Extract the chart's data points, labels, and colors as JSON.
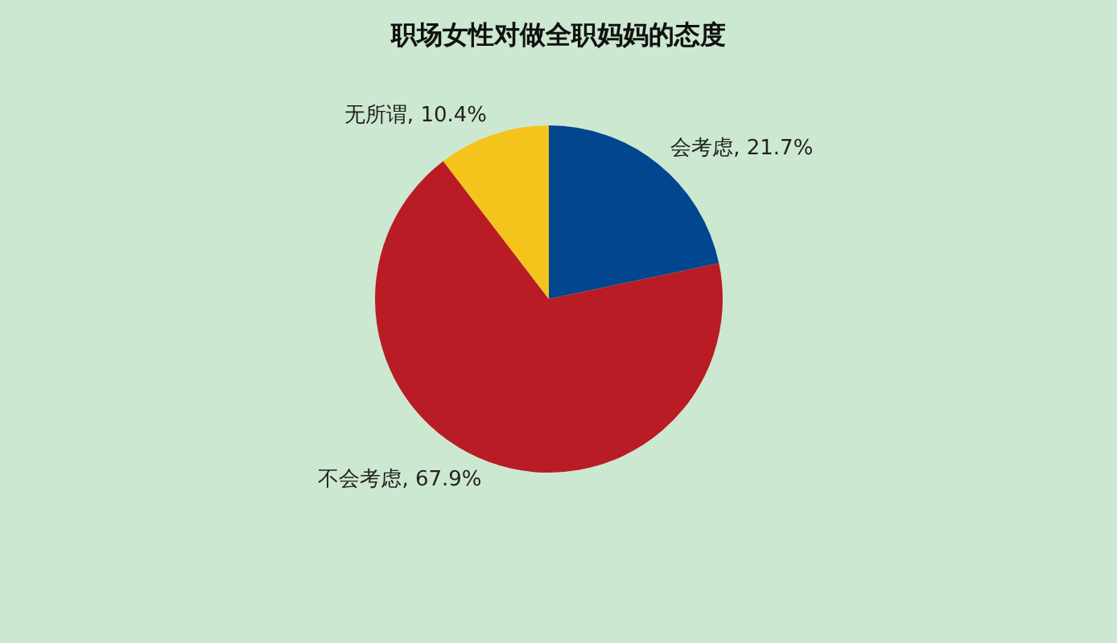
{
  "chart_data": {
    "type": "pie",
    "title": "职场女性对做全职妈妈的态度",
    "categories": [
      "会考虑",
      "不会考虑",
      "无所谓"
    ],
    "values": [
      21.7,
      67.9,
      10.4
    ],
    "colors": [
      "#02468f",
      "#b91c24",
      "#f4c41c"
    ],
    "value_labels": [
      "21.7%",
      "67.9%",
      "10.4%"
    ],
    "legend": false
  }
}
